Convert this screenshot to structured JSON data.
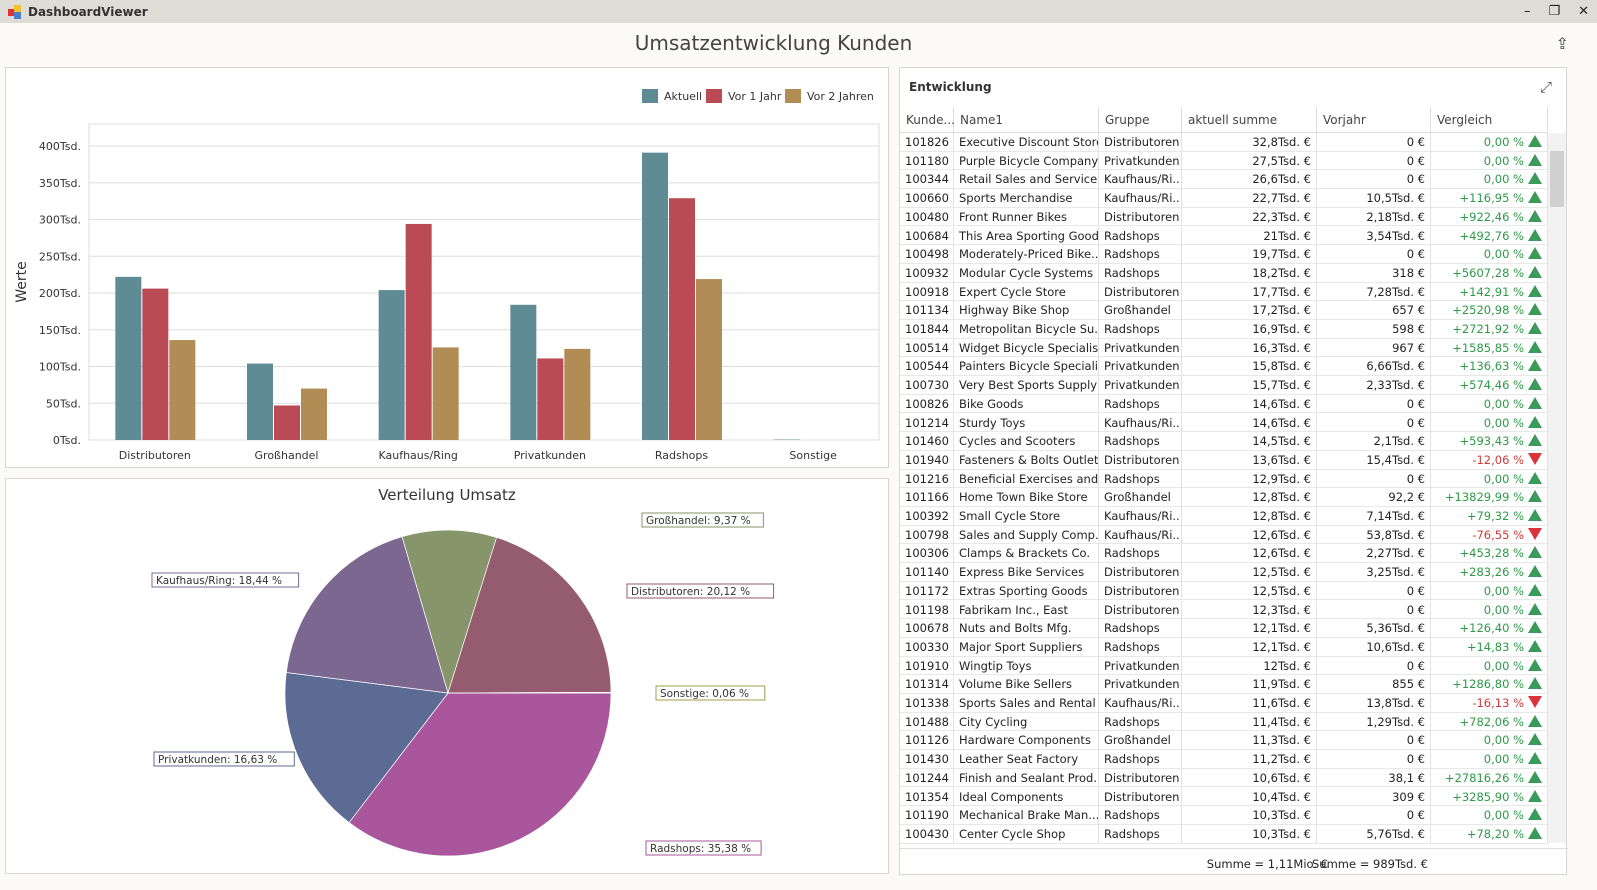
{
  "window": {
    "title": "DashboardViewer",
    "minimize": "–",
    "maximize": "❐",
    "close": "✕"
  },
  "dashboard_title": "Umsatzentwicklung Kunden",
  "chart_data": [
    {
      "type": "bar",
      "title": "",
      "ylabel": "Werte",
      "ylim": [
        0,
        430
      ],
      "grid": true,
      "legend": "top-right",
      "yticks": [
        "0Tsd.",
        "50Tsd.",
        "100Tsd.",
        "150Tsd.",
        "200Tsd.",
        "250Tsd.",
        "300Tsd.",
        "350Tsd.",
        "400Tsd."
      ],
      "categories": [
        "Distributoren",
        "Großhandel",
        "Kaufhaus/Ring",
        "Privatkunden",
        "Radshops",
        "Sonstige"
      ],
      "series": [
        {
          "name": "Aktuell",
          "color": "#5f8b95",
          "values": [
            222,
            104,
            204,
            184,
            391,
            0.6
          ]
        },
        {
          "name": "Vor 1 Jahr",
          "color": "#ba4b55",
          "values": [
            206,
            47,
            294,
            111,
            329,
            0
          ]
        },
        {
          "name": "Vor 2 Jahren",
          "color": "#b18c55",
          "values": [
            136,
            70,
            126,
            124,
            219,
            0
          ]
        }
      ]
    },
    {
      "type": "pie",
      "title": "Verteilung Umsatz",
      "slices": [
        {
          "label": "Radshops: 35,38 %",
          "value": 35.38,
          "color": "#a9569c"
        },
        {
          "label": "Privatkunden: 16,63 %",
          "value": 16.63,
          "color": "#5c6b94"
        },
        {
          "label": "Kaufhaus/Ring: 18,44 %",
          "value": 18.44,
          "color": "#7c6790"
        },
        {
          "label": "Großhandel: 9,37 %",
          "value": 9.37,
          "color": "#86966a"
        },
        {
          "label": "Distributoren: 20,12 %",
          "value": 20.12,
          "color": "#955c6f"
        },
        {
          "label": "Sonstige: 0,06 %",
          "value": 0.06,
          "color": "#9aa04a"
        }
      ]
    }
  ],
  "grid": {
    "title": "Entwicklung",
    "columns": [
      "Kunde...",
      "Name1",
      "Gruppe",
      "aktuell summe",
      "Vorjahr",
      "Vergleich"
    ],
    "rows": [
      [
        "101826",
        "Executive Discount Store",
        "Distributoren",
        "32,8Tsd. €",
        "0 €",
        "0,00 %",
        "up"
      ],
      [
        "101180",
        "Purple Bicycle Company",
        "Privatkunden",
        "27,5Tsd. €",
        "0 €",
        "0,00 %",
        "up"
      ],
      [
        "100344",
        "Retail Sales and Service",
        "Kaufhaus/Ri...",
        "26,6Tsd. €",
        "0 €",
        "0,00 %",
        "up"
      ],
      [
        "100660",
        "Sports Merchandise",
        "Kaufhaus/Ri...",
        "22,7Tsd. €",
        "10,5Tsd. €",
        "+116,95 %",
        "up"
      ],
      [
        "100480",
        "Front Runner Bikes",
        "Distributoren",
        "22,3Tsd. €",
        "2,18Tsd. €",
        "+922,46 %",
        "up"
      ],
      [
        "100684",
        "This Area Sporting Goods",
        "Radshops",
        "21Tsd. €",
        "3,54Tsd. €",
        "+492,76 %",
        "up"
      ],
      [
        "100498",
        "Moderately-Priced Bike...",
        "Radshops",
        "19,7Tsd. €",
        "0 €",
        "0,00 %",
        "up"
      ],
      [
        "100932",
        "Modular Cycle Systems",
        "Radshops",
        "18,2Tsd. €",
        "318 €",
        "+5607,28 %",
        "up"
      ],
      [
        "100918",
        "Expert Cycle Store",
        "Distributoren",
        "17,7Tsd. €",
        "7,28Tsd. €",
        "+142,91 %",
        "up"
      ],
      [
        "101134",
        "Highway Bike Shop",
        "Großhandel",
        "17,2Tsd. €",
        "657 €",
        "+2520,98 %",
        "up"
      ],
      [
        "101844",
        "Metropolitan Bicycle Su...",
        "Radshops",
        "16,9Tsd. €",
        "598 €",
        "+2721,92 %",
        "up"
      ],
      [
        "100514",
        "Widget Bicycle Specialists",
        "Privatkunden",
        "16,3Tsd. €",
        "967 €",
        "+1585,85 %",
        "up"
      ],
      [
        "100544",
        "Painters Bicycle Speciali...",
        "Privatkunden",
        "15,8Tsd. €",
        "6,66Tsd. €",
        "+136,63 %",
        "up"
      ],
      [
        "100730",
        "Very Best Sports Supply",
        "Privatkunden",
        "15,7Tsd. €",
        "2,33Tsd. €",
        "+574,46 %",
        "up"
      ],
      [
        "100826",
        "Bike Goods",
        "Radshops",
        "14,6Tsd. €",
        "0 €",
        "0,00 %",
        "up"
      ],
      [
        "101214",
        "Sturdy Toys",
        "Kaufhaus/Ri...",
        "14,6Tsd. €",
        "0 €",
        "0,00 %",
        "up"
      ],
      [
        "101460",
        "Cycles and Scooters",
        "Radshops",
        "14,5Tsd. €",
        "2,1Tsd. €",
        "+593,43 %",
        "up"
      ],
      [
        "101940",
        "Fasteners & Bolts Outlet",
        "Distributoren",
        "13,6Tsd. €",
        "15,4Tsd. €",
        "-12,06 %",
        "down"
      ],
      [
        "101216",
        "Beneficial Exercises and ...",
        "Radshops",
        "12,9Tsd. €",
        "0 €",
        "0,00 %",
        "up"
      ],
      [
        "101166",
        "Home Town Bike Store",
        "Großhandel",
        "12,8Tsd. €",
        "92,2 €",
        "+13829,99 %",
        "up"
      ],
      [
        "100392",
        "Small Cycle Store",
        "Kaufhaus/Ri...",
        "12,8Tsd. €",
        "7,14Tsd. €",
        "+79,32 %",
        "up"
      ],
      [
        "100798",
        "Sales and Supply Comp...",
        "Kaufhaus/Ri...",
        "12,6Tsd. €",
        "53,8Tsd. €",
        "-76,55 %",
        "down"
      ],
      [
        "100306",
        "Clamps & Brackets Co.",
        "Radshops",
        "12,6Tsd. €",
        "2,27Tsd. €",
        "+453,28 %",
        "up"
      ],
      [
        "101140",
        "Express Bike Services",
        "Distributoren",
        "12,5Tsd. €",
        "3,25Tsd. €",
        "+283,26 %",
        "up"
      ],
      [
        "101172",
        "Extras Sporting Goods",
        "Distributoren",
        "12,5Tsd. €",
        "0 €",
        "0,00 %",
        "up"
      ],
      [
        "101198",
        "Fabrikam Inc., East",
        "Distributoren",
        "12,3Tsd. €",
        "0 €",
        "0,00 %",
        "up"
      ],
      [
        "100678",
        "Nuts and Bolts Mfg.",
        "Radshops",
        "12,1Tsd. €",
        "5,36Tsd. €",
        "+126,40 %",
        "up"
      ],
      [
        "100330",
        "Major Sport Suppliers",
        "Radshops",
        "12,1Tsd. €",
        "10,6Tsd. €",
        "+14,83 %",
        "up"
      ],
      [
        "101910",
        "Wingtip Toys",
        "Privatkunden",
        "12Tsd. €",
        "0 €",
        "0,00 %",
        "up"
      ],
      [
        "101314",
        "Volume Bike Sellers",
        "Privatkunden",
        "11,9Tsd. €",
        "855 €",
        "+1286,80 %",
        "up"
      ],
      [
        "101338",
        "Sports Sales and Rental",
        "Kaufhaus/Ri...",
        "11,6Tsd. €",
        "13,8Tsd. €",
        "-16,13 %",
        "down"
      ],
      [
        "101488",
        "City Cycling",
        "Radshops",
        "11,4Tsd. €",
        "1,29Tsd. €",
        "+782,06 %",
        "up"
      ],
      [
        "101126",
        "Hardware Components",
        "Großhandel",
        "11,3Tsd. €",
        "0 €",
        "0,00 %",
        "up"
      ],
      [
        "101430",
        "Leather Seat Factory",
        "Radshops",
        "11,2Tsd. €",
        "0 €",
        "0,00 %",
        "up"
      ],
      [
        "101244",
        "Finish and Sealant Prod...",
        "Distributoren",
        "10,6Tsd. €",
        "38,1 €",
        "+27816,26 %",
        "up"
      ],
      [
        "101354",
        "Ideal Components",
        "Distributoren",
        "10,4Tsd. €",
        "309 €",
        "+3285,90 %",
        "up"
      ],
      [
        "101190",
        "Mechanical Brake Man...",
        "Radshops",
        "10,3Tsd. €",
        "0 €",
        "0,00 %",
        "up"
      ],
      [
        "100430",
        "Center Cycle Shop",
        "Radshops",
        "10,3Tsd. €",
        "5,76Tsd. €",
        "+78,20 %",
        "up"
      ]
    ],
    "totals": {
      "aktuell": "Summe = 1,11Mio. €",
      "vorjahr": "Summe = 989Tsd. €"
    }
  }
}
